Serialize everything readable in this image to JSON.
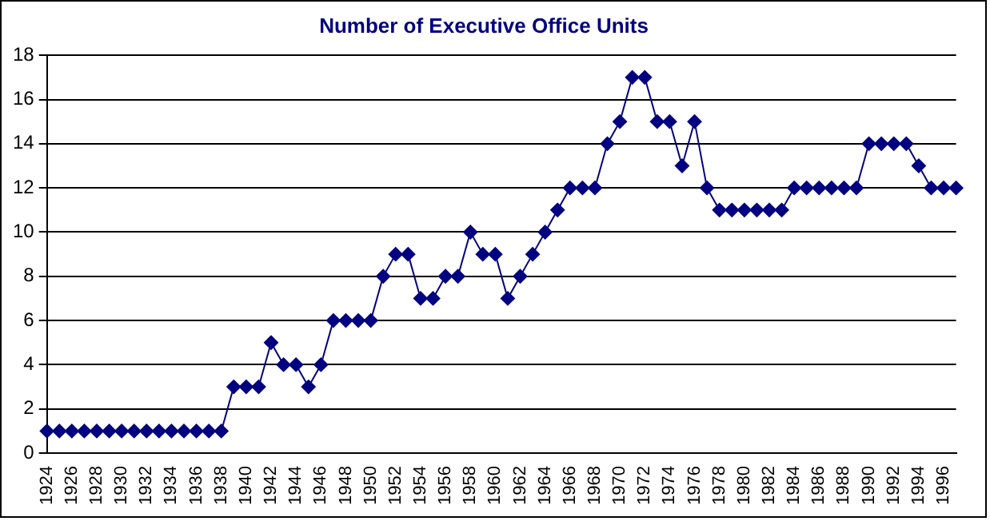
{
  "chart_data": {
    "type": "line",
    "title": "Number of Executive Office Units",
    "categories": [
      "1924",
      null,
      "1926",
      null,
      "1928",
      null,
      "1930",
      null,
      "1932",
      null,
      "1934",
      null,
      "1936",
      null,
      "1938",
      null,
      "1940",
      null,
      "1942",
      null,
      "1944",
      null,
      "1946",
      null,
      "1948",
      null,
      "1950",
      null,
      "1952",
      null,
      "1954",
      null,
      "1956",
      null,
      "1958",
      null,
      "1960",
      null,
      "1962",
      null,
      "1964",
      null,
      "1966",
      null,
      "1968",
      null,
      "1970",
      null,
      "1972",
      null,
      "1974",
      null,
      "1976",
      null,
      "1978",
      null,
      "1980",
      null,
      "1982",
      null,
      "1984",
      null,
      "1986",
      null,
      "1988",
      null,
      "1990",
      null,
      "1992",
      null,
      "1994",
      null,
      "1996",
      null
    ],
    "series": [
      {
        "color": "#000080",
        "values": [
          1,
          1,
          1,
          1,
          1,
          1,
          1,
          1,
          1,
          1,
          1,
          1,
          1,
          1,
          1,
          3,
          3,
          3,
          5,
          4,
          4,
          3,
          4,
          6,
          6,
          6,
          6,
          8,
          9,
          9,
          7,
          7,
          8,
          8,
          10,
          9,
          9,
          7,
          8,
          9,
          10,
          11,
          12,
          12,
          12,
          14,
          15,
          17,
          17,
          15,
          15,
          13,
          15,
          12,
          11,
          11,
          11,
          11,
          11,
          11,
          12,
          12,
          12,
          12,
          12,
          12,
          14,
          14,
          14,
          14,
          13,
          12,
          12,
          12
        ]
      }
    ],
    "ylim": [
      0,
      18
    ],
    "yticks": [
      0,
      2,
      4,
      6,
      8,
      10,
      12,
      14,
      16,
      18
    ],
    "grid": "y",
    "legend": false,
    "marker": "diamond",
    "line_style": "solid"
  }
}
